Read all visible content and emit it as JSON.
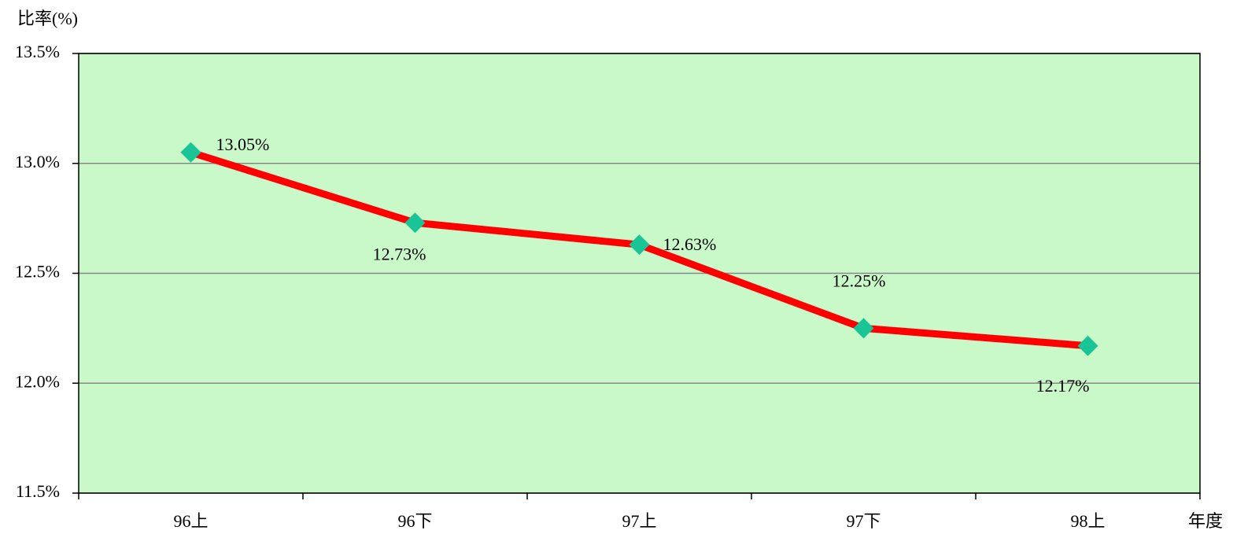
{
  "chart_data": {
    "type": "line",
    "y_axis_label": "比率(%)",
    "x_axis_label": "年度",
    "categories": [
      "96上",
      "96下",
      "97上",
      "97下",
      "98上"
    ],
    "values": [
      13.05,
      12.73,
      12.63,
      12.25,
      12.17
    ],
    "value_labels": [
      "13.05%",
      "12.73%",
      "12.63%",
      "12.25%",
      "12.17%"
    ],
    "color": "#ff0000",
    "marker_color": "#19c596",
    "ylim": [
      11.5,
      13.5
    ],
    "yticks": [
      {
        "value": 11.5,
        "label": "11.5%"
      },
      {
        "value": 12.0,
        "label": "12.0%"
      },
      {
        "value": 12.5,
        "label": "12.5%"
      },
      {
        "value": 13.0,
        "label": "13.0%"
      },
      {
        "value": 13.5,
        "label": "13.5%"
      }
    ],
    "grid": true
  }
}
